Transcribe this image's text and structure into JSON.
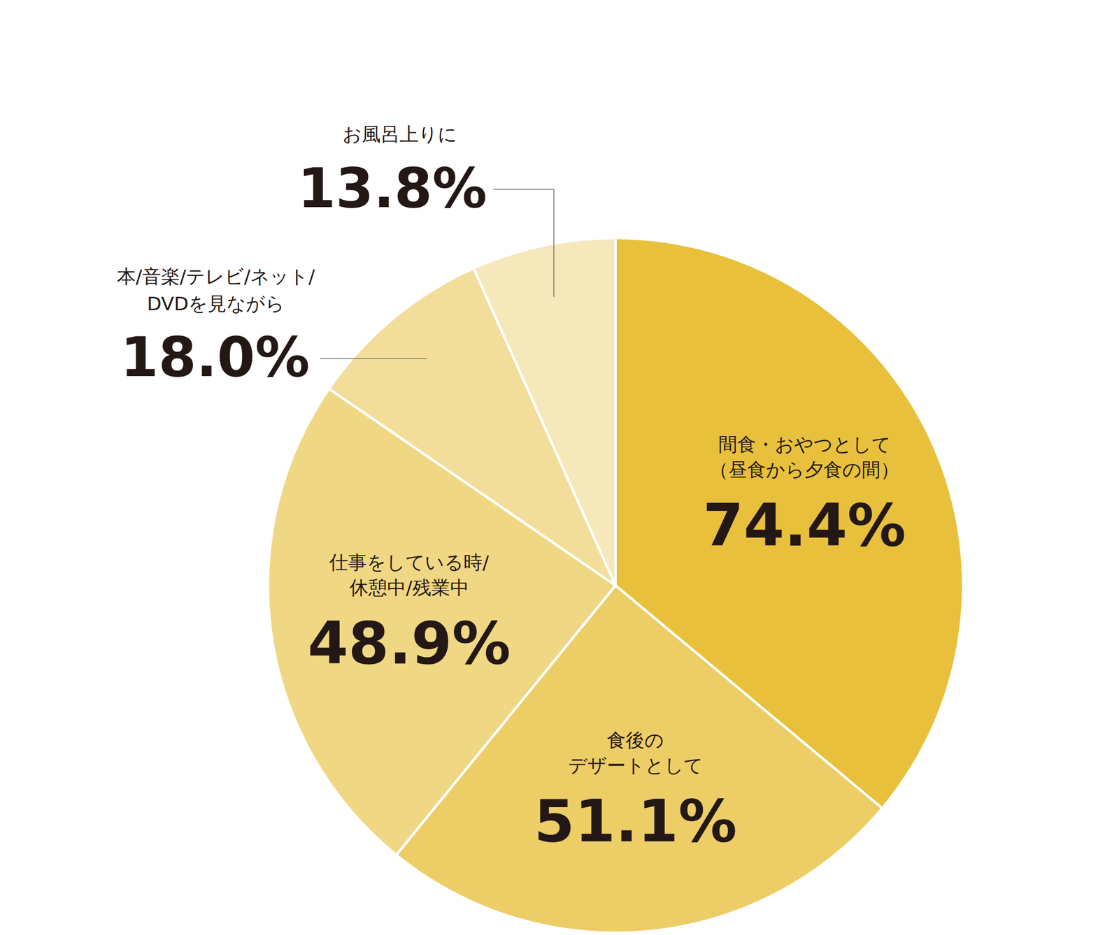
{
  "chart_data": {
    "type": "pie",
    "categories": [
      "間食・おやつとして\n（昼食から夕食の間）",
      "食後の\nデザートとして",
      "仕事をしている時/\n休憩中/残業中",
      "本/音楽/テレビ/ネット/\nDVDを見ながら",
      "お風呂上りに"
    ],
    "values": [
      74.4,
      51.1,
      48.9,
      18.0,
      13.8
    ],
    "value_labels": [
      "74.4%",
      "51.1%",
      "48.9%",
      "18.0%",
      "13.8%"
    ],
    "colors": [
      "#e9c03b",
      "#edcd66",
      "#f0d784",
      "#f2de9a",
      "#f5e8ba"
    ],
    "data_labels": true
  }
}
